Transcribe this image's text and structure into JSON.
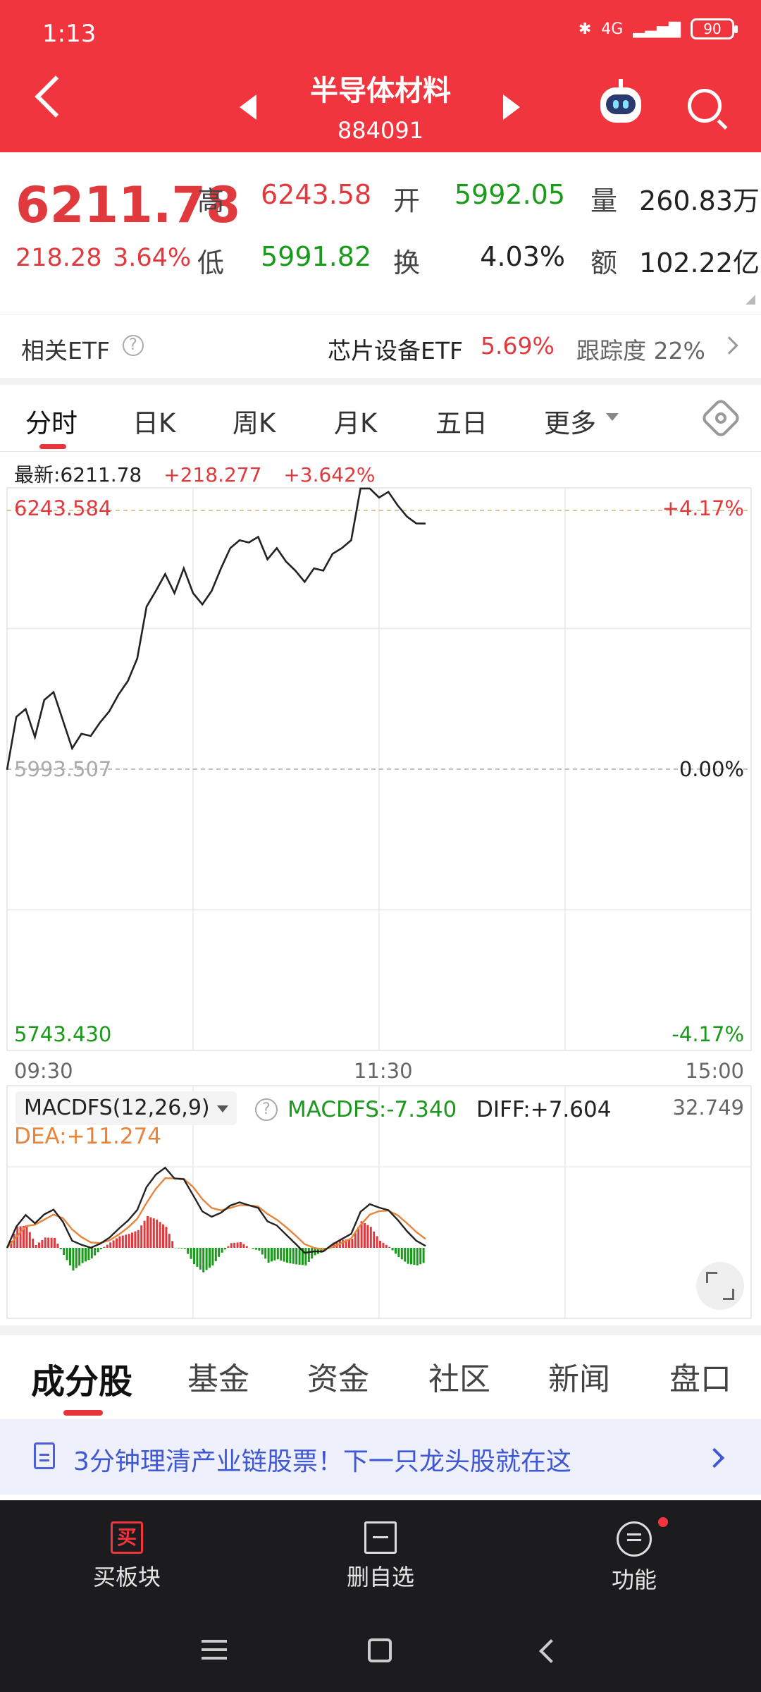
{
  "status_bar": {
    "time": "1:13",
    "network": "4G",
    "battery": "90"
  },
  "header": {
    "title": "半导体材料",
    "code": "884091"
  },
  "quote": {
    "price": "6211.78",
    "change": "218.28",
    "change_pct": "3.64%",
    "high_label": "高",
    "high": "6243.58",
    "open_label": "开",
    "open": "5992.05",
    "volume_label": "量",
    "volume": "260.83万",
    "low_label": "低",
    "low": "5991.82",
    "turnover_label": "换",
    "turnover": "4.03%",
    "amount_label": "额",
    "amount": "102.22亿"
  },
  "etf": {
    "label": "相关ETF",
    "name": "芯片设备ETF",
    "pct": "5.69%",
    "tracking": "跟踪度 22%"
  },
  "chart_tabs": [
    "分时",
    "日K",
    "周K",
    "月K",
    "五日",
    "更多"
  ],
  "latest": {
    "label": "最新:6211.78",
    "change": "+218.277",
    "pct": "+3.642%"
  },
  "chart_data": {
    "type": "line",
    "x_ticks": [
      "09:30",
      "11:30",
      "15:00"
    ],
    "y_top_label": "6243.584",
    "y_mid_label": "5993.507",
    "y_bottom_label": "5743.430",
    "pct_top": "+4.17%",
    "pct_mid": "0.00%",
    "pct_bottom": "-4.17%",
    "ylim": [
      5743.43,
      6243.584
    ],
    "prev_close": 5993.507,
    "x": [
      0,
      3,
      6,
      9,
      12,
      15,
      18,
      21,
      24,
      27,
      30,
      33,
      36,
      39,
      42,
      45,
      48,
      51,
      54,
      57,
      60,
      63,
      66,
      69,
      72,
      75,
      78,
      81,
      84,
      87,
      90,
      93,
      96,
      99,
      102,
      105,
      108,
      111,
      114,
      117,
      120,
      123,
      126,
      129,
      132,
      135
    ],
    "values": [
      5993,
      6040,
      6047,
      6022,
      6055,
      6062,
      6037,
      6012,
      6025,
      6023,
      6035,
      6045,
      6060,
      6072,
      6092,
      6138,
      6152,
      6167,
      6150,
      6172,
      6150,
      6140,
      6152,
      6172,
      6190,
      6197,
      6195,
      6200,
      6180,
      6190,
      6178,
      6170,
      6160,
      6172,
      6170,
      6185,
      6190,
      6197,
      6243,
      6243,
      6235,
      6240,
      6228,
      6218,
      6212,
      6211.78
    ]
  },
  "macd": {
    "indicator_label": "MACDFS(12,26,9)",
    "macdfs": "MACDFS:-7.340",
    "diff": "DIFF:+7.604",
    "dea": "DEA:+11.274",
    "scale_top": "32.749"
  },
  "content_tabs": [
    "成分股",
    "基金",
    "资金",
    "社区",
    "新闻",
    "盘口"
  ],
  "banner": {
    "text": "3分钟理清产业链股票！下一只龙头股就在这"
  },
  "bottom_bar": {
    "buy": "买板块",
    "remove": "删自选",
    "functions": "功能",
    "buy_icon_char": "买"
  },
  "colors": {
    "accent": "#f1353e",
    "up": "#e03a3e",
    "down": "#1a9a1a"
  }
}
